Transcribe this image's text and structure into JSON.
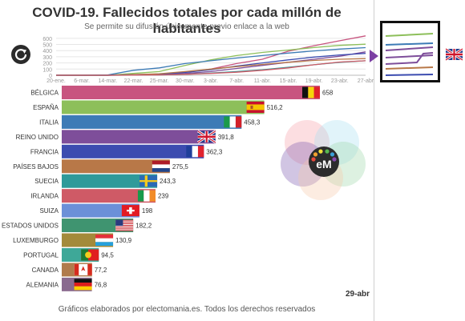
{
  "header": {
    "title": "COVID-19. Fallecidos totales por cada millón de habitantes",
    "subtitle": "Se permite su difusión únicamente previo enlace a la web"
  },
  "footer": "Gráficos elaborados por electomania.es. Todos los derechos reservados",
  "date_label": "29-abr",
  "logo_text": "eM",
  "colors": {
    "pink": "#c8547f",
    "green": "#8dbf5a",
    "blue": "#3d7bb6",
    "purple": "#7e4e9a",
    "royal": "#3c4cb0",
    "brown": "#b87848",
    "teal": "#2f9a9a",
    "salmon": "#cf5a66",
    "sky": "#6c90d8",
    "darkgreen": "#3f9470",
    "olive": "#a38a3a",
    "mint": "#3ea898",
    "tan": "#b07b4c",
    "mauve": "#8a6a8f"
  },
  "chart_data": [
    {
      "type": "line",
      "x": [
        "20-ene.",
        "6-mar.",
        "14-mar.",
        "22-mar.",
        "25-mar.",
        "30-mar.",
        "3-abr.",
        "7-abr.",
        "11-abr.",
        "15-abr.",
        "19-abr.",
        "23-abr.",
        "27-abr"
      ],
      "yticks": [
        0,
        100,
        200,
        300,
        400,
        500,
        600
      ],
      "ylim": [
        0,
        650
      ],
      "series": [
        {
          "name": "BÉLGICA",
          "color": "pink",
          "values": [
            0,
            0,
            0,
            5,
            10,
            50,
            100,
            190,
            260,
            390,
            480,
            560,
            640
          ]
        },
        {
          "name": "ESPAÑA",
          "color": "green",
          "values": [
            0,
            0,
            0,
            30,
            60,
            160,
            250,
            320,
            370,
            410,
            450,
            485,
            505
          ]
        },
        {
          "name": "ITALIA",
          "color": "blue",
          "values": [
            0,
            0,
            5,
            80,
            120,
            190,
            235,
            280,
            320,
            360,
            395,
            425,
            448
          ]
        },
        {
          "name": "REINO UNIDO",
          "color": "purple",
          "values": [
            0,
            0,
            0,
            5,
            10,
            30,
            60,
            110,
            160,
            210,
            260,
            310,
            380
          ]
        },
        {
          "name": "FRANCIA",
          "color": "royal",
          "values": [
            0,
            0,
            0,
            10,
            20,
            45,
            90,
            150,
            200,
            250,
            295,
            330,
            355
          ]
        },
        {
          "name": "PAÍSES BAJOS",
          "color": "brown",
          "values": [
            0,
            0,
            0,
            10,
            25,
            60,
            100,
            140,
            175,
            210,
            240,
            260,
            270
          ]
        },
        {
          "name": "SUECIA",
          "color": "teal",
          "values": [
            0,
            0,
            0,
            2,
            5,
            15,
            35,
            60,
            90,
            130,
            170,
            210,
            235
          ]
        },
        {
          "name": "IRLANDA",
          "color": "salmon",
          "values": [
            0,
            0,
            0,
            2,
            5,
            15,
            30,
            50,
            80,
            120,
            170,
            215,
            235
          ]
        }
      ]
    },
    {
      "type": "bar",
      "categories": [
        "BÉLGICA",
        "ESPAÑA",
        "ITALIA",
        "REINO UNIDO",
        "FRANCIA",
        "PAÍSES BAJOS",
        "SUECIA",
        "IRLANDA",
        "SUIZA",
        "ESTADOS UNIDOS",
        "LUXEMBURGO",
        "PORTUGAL",
        "CANADA",
        "ALEMANIA"
      ],
      "values": [
        658,
        516.2,
        458.3,
        391.8,
        362.3,
        275.5,
        243.3,
        239,
        198,
        182.2,
        130.9,
        94.5,
        77.2,
        76.8
      ],
      "value_labels": [
        "658",
        "516,2",
        "458,3",
        "391,8",
        "362,3",
        "275,5",
        "243,3",
        "239",
        "198",
        "182,2",
        "130,9",
        "94,5",
        "77,2",
        "76,8"
      ],
      "colors": [
        "pink",
        "green",
        "blue",
        "purple",
        "royal",
        "brown",
        "teal",
        "salmon",
        "sky",
        "darkgreen",
        "olive",
        "mint",
        "tan",
        "mauve"
      ],
      "flags": [
        "be",
        "es",
        "it",
        "uk",
        "fr",
        "nl",
        "se",
        "ie",
        "ch",
        "us",
        "lu",
        "pt",
        "ca",
        "de"
      ]
    }
  ]
}
